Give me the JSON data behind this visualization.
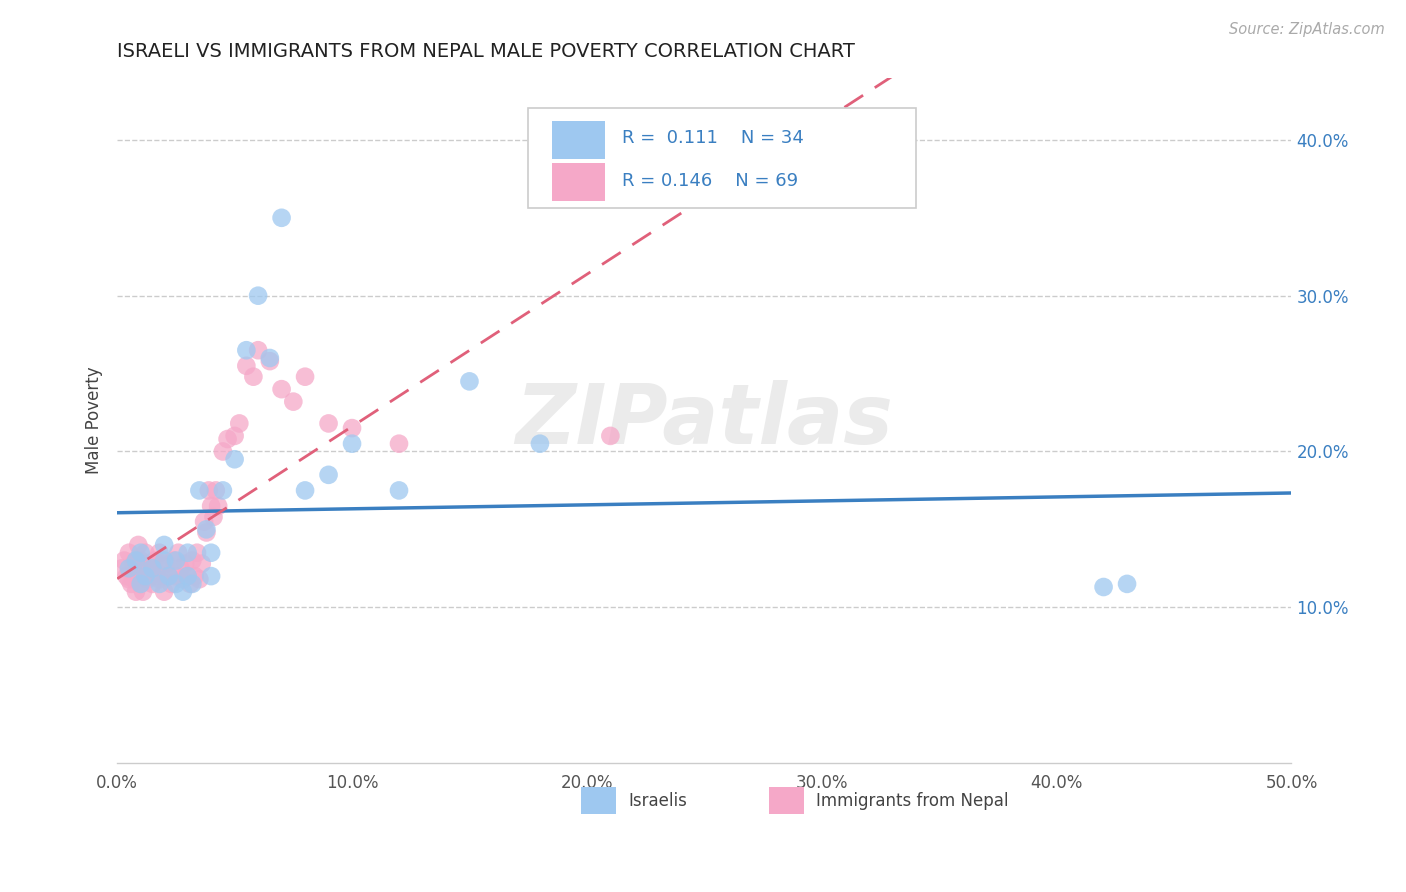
{
  "title": "ISRAELI VS IMMIGRANTS FROM NEPAL MALE POVERTY CORRELATION CHART",
  "source": "Source: ZipAtlas.com",
  "ylabel": "Male Poverty",
  "xlim": [
    0.0,
    0.5
  ],
  "ylim": [
    0.0,
    0.44
  ],
  "xtick_values": [
    0.0,
    0.1,
    0.2,
    0.3,
    0.4,
    0.5
  ],
  "xtick_labels": [
    "0.0%",
    "10.0%",
    "20.0%",
    "30.0%",
    "40.0%",
    "50.0%"
  ],
  "ytick_values": [
    0.1,
    0.2,
    0.3,
    0.4
  ],
  "ytick_labels": [
    "10.0%",
    "20.0%",
    "30.0%",
    "40.0%"
  ],
  "grid_color": "#cccccc",
  "background_color": "#ffffff",
  "watermark_text": "ZIPatlas",
  "legend_R1": "0.111",
  "legend_N1": "34",
  "legend_R2": "0.146",
  "legend_N2": "69",
  "israelis_color": "#9ec8f0",
  "nepal_color": "#f5a8c8",
  "trend_israelis_color": "#3a7fc1",
  "trend_nepal_color": "#e0607a",
  "israelis_x": [
    0.005,
    0.008,
    0.01,
    0.01,
    0.012,
    0.015,
    0.018,
    0.02,
    0.02,
    0.022,
    0.025,
    0.025,
    0.028,
    0.03,
    0.03,
    0.032,
    0.035,
    0.038,
    0.04,
    0.04,
    0.045,
    0.05,
    0.055,
    0.06,
    0.065,
    0.07,
    0.08,
    0.09,
    0.1,
    0.12,
    0.15,
    0.18,
    0.42,
    0.43
  ],
  "israelis_y": [
    0.125,
    0.13,
    0.115,
    0.135,
    0.12,
    0.125,
    0.115,
    0.13,
    0.14,
    0.12,
    0.115,
    0.13,
    0.11,
    0.12,
    0.135,
    0.115,
    0.175,
    0.15,
    0.12,
    0.135,
    0.175,
    0.195,
    0.265,
    0.3,
    0.26,
    0.35,
    0.175,
    0.185,
    0.205,
    0.175,
    0.245,
    0.205,
    0.113,
    0.115
  ],
  "nepal_x": [
    0.002,
    0.003,
    0.004,
    0.005,
    0.005,
    0.006,
    0.007,
    0.007,
    0.008,
    0.008,
    0.009,
    0.009,
    0.01,
    0.01,
    0.01,
    0.011,
    0.011,
    0.012,
    0.012,
    0.013,
    0.013,
    0.014,
    0.015,
    0.015,
    0.016,
    0.017,
    0.018,
    0.018,
    0.019,
    0.02,
    0.02,
    0.021,
    0.022,
    0.023,
    0.024,
    0.025,
    0.026,
    0.027,
    0.028,
    0.029,
    0.03,
    0.031,
    0.032,
    0.033,
    0.034,
    0.035,
    0.036,
    0.037,
    0.038,
    0.039,
    0.04,
    0.041,
    0.042,
    0.043,
    0.045,
    0.047,
    0.05,
    0.052,
    0.055,
    0.058,
    0.06,
    0.065,
    0.07,
    0.075,
    0.08,
    0.09,
    0.1,
    0.12,
    0.21
  ],
  "nepal_y": [
    0.125,
    0.13,
    0.12,
    0.118,
    0.135,
    0.115,
    0.128,
    0.118,
    0.11,
    0.13,
    0.12,
    0.14,
    0.125,
    0.115,
    0.13,
    0.12,
    0.11,
    0.125,
    0.135,
    0.118,
    0.128,
    0.12,
    0.125,
    0.115,
    0.13,
    0.12,
    0.135,
    0.118,
    0.128,
    0.12,
    0.11,
    0.128,
    0.12,
    0.115,
    0.13,
    0.12,
    0.135,
    0.125,
    0.118,
    0.128,
    0.12,
    0.115,
    0.13,
    0.12,
    0.135,
    0.118,
    0.128,
    0.155,
    0.148,
    0.175,
    0.165,
    0.158,
    0.175,
    0.165,
    0.2,
    0.208,
    0.21,
    0.218,
    0.255,
    0.248,
    0.265,
    0.258,
    0.24,
    0.232,
    0.248,
    0.218,
    0.215,
    0.205,
    0.21
  ]
}
